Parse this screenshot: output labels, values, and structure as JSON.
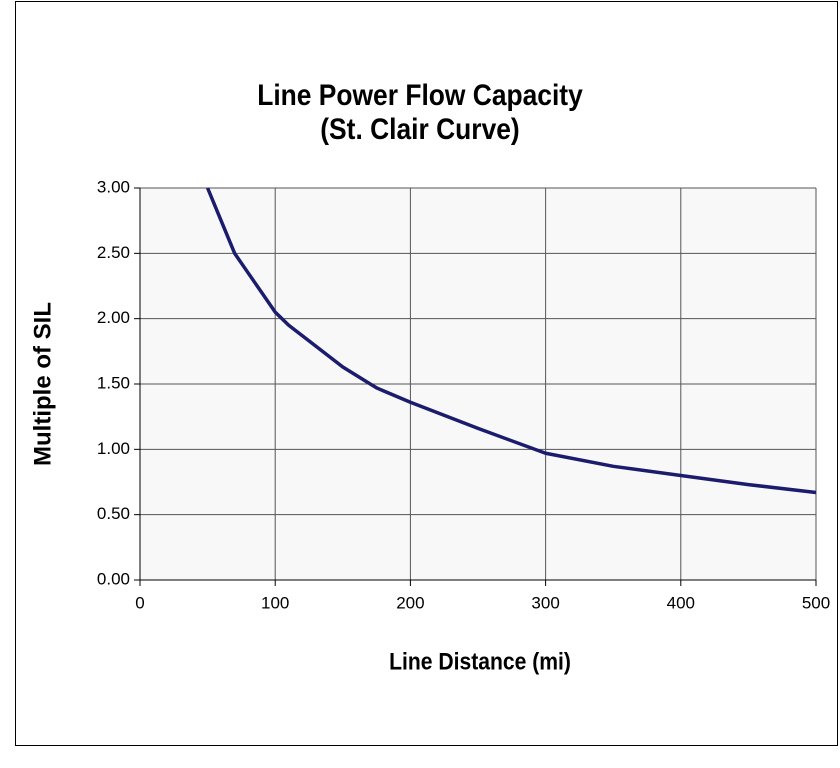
{
  "chart_data": {
    "type": "line",
    "title": [
      "Line Power Flow Capacity",
      "(St. Clair Curve)"
    ],
    "x_label": "Line Distance (mi)",
    "y_label": "Multiple of SIL",
    "series": [
      {
        "color": "#1c1c6e",
        "x": [
          50,
          60,
          70,
          80,
          90,
          100,
          110,
          125,
          150,
          175,
          200,
          250,
          300,
          350,
          400,
          450,
          500
        ],
        "values": [
          3.0,
          2.75,
          2.5,
          2.35,
          2.2,
          2.05,
          1.95,
          1.83,
          1.63,
          1.47,
          1.36,
          1.16,
          0.97,
          0.87,
          0.8,
          0.73,
          0.67
        ]
      }
    ],
    "xlim": [
      0,
      500
    ],
    "xticks": [
      0,
      100,
      200,
      300,
      400,
      500
    ],
    "ylim": [
      0,
      3
    ],
    "yticks": [
      {
        "value": 0,
        "label": "0.00"
      },
      {
        "value": 0.5,
        "label": "0.50"
      },
      {
        "value": 1,
        "label": "1.00"
      },
      {
        "value": 1.5,
        "label": "1.50"
      },
      {
        "value": 2,
        "label": "2.00"
      },
      {
        "value": 2.5,
        "label": "2.50"
      },
      {
        "value": 3,
        "label": "3.00"
      }
    ],
    "grid": true
  }
}
